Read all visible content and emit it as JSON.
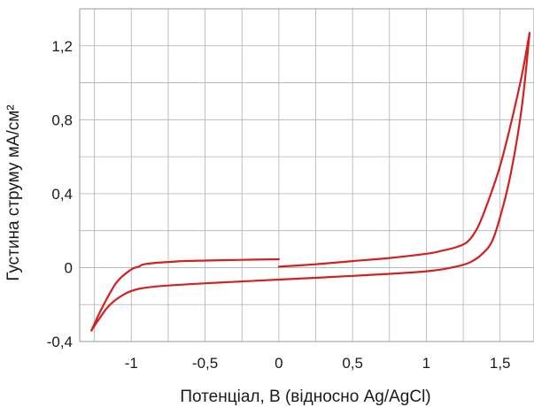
{
  "chart_data": {
    "type": "line",
    "xlabel": "Потенціал, В (відносно Ag/AgCl)",
    "ylabel": "Густина струму мА/см²",
    "xlim": [
      -1.35,
      1.73
    ],
    "ylim": [
      -0.4,
      1.4
    ],
    "x_tick_values": [
      -1,
      -0.5,
      0,
      0.5,
      1,
      1.5
    ],
    "x_tick_labels": [
      "-1",
      "-0,5",
      "0",
      "0,5",
      "1",
      "1,5"
    ],
    "y_tick_values": [
      -0.4,
      0,
      0.4,
      0.8,
      1.2
    ],
    "y_tick_labels": [
      "-0,4",
      "0",
      "0,4",
      "0,8",
      "1,2"
    ],
    "grid": true,
    "color": "#d42020",
    "series": [
      {
        "x": [
          0,
          0.25,
          0.5,
          0.75,
          1.0,
          1.1,
          1.2,
          1.28,
          1.35,
          1.42,
          1.5,
          1.58,
          1.65,
          1.7
        ],
        "y": [
          0.005,
          0.018,
          0.035,
          0.052,
          0.075,
          0.09,
          0.11,
          0.14,
          0.22,
          0.36,
          0.55,
          0.8,
          1.05,
          1.27
        ]
      },
      {
        "x": [
          1.7,
          1.66,
          1.62,
          1.57,
          1.52,
          1.45,
          1.38,
          1.3,
          1.2,
          1.0,
          0.5,
          0.0,
          -0.5,
          -0.8,
          -0.95,
          -1.05,
          -1.15,
          -1.22,
          -1.27
        ],
        "y": [
          1.27,
          0.95,
          0.72,
          0.5,
          0.33,
          0.15,
          0.075,
          0.03,
          0.005,
          -0.02,
          -0.045,
          -0.065,
          -0.085,
          -0.1,
          -0.115,
          -0.145,
          -0.205,
          -0.28,
          -0.34
        ]
      },
      {
        "x": [
          -1.27,
          -1.2,
          -1.1,
          -1.0,
          -0.95,
          -0.9,
          -0.7,
          -0.5,
          -0.25,
          0
        ],
        "y": [
          -0.34,
          -0.22,
          -0.08,
          -0.01,
          0.005,
          0.02,
          0.033,
          0.038,
          0.042,
          0.045
        ]
      }
    ]
  }
}
